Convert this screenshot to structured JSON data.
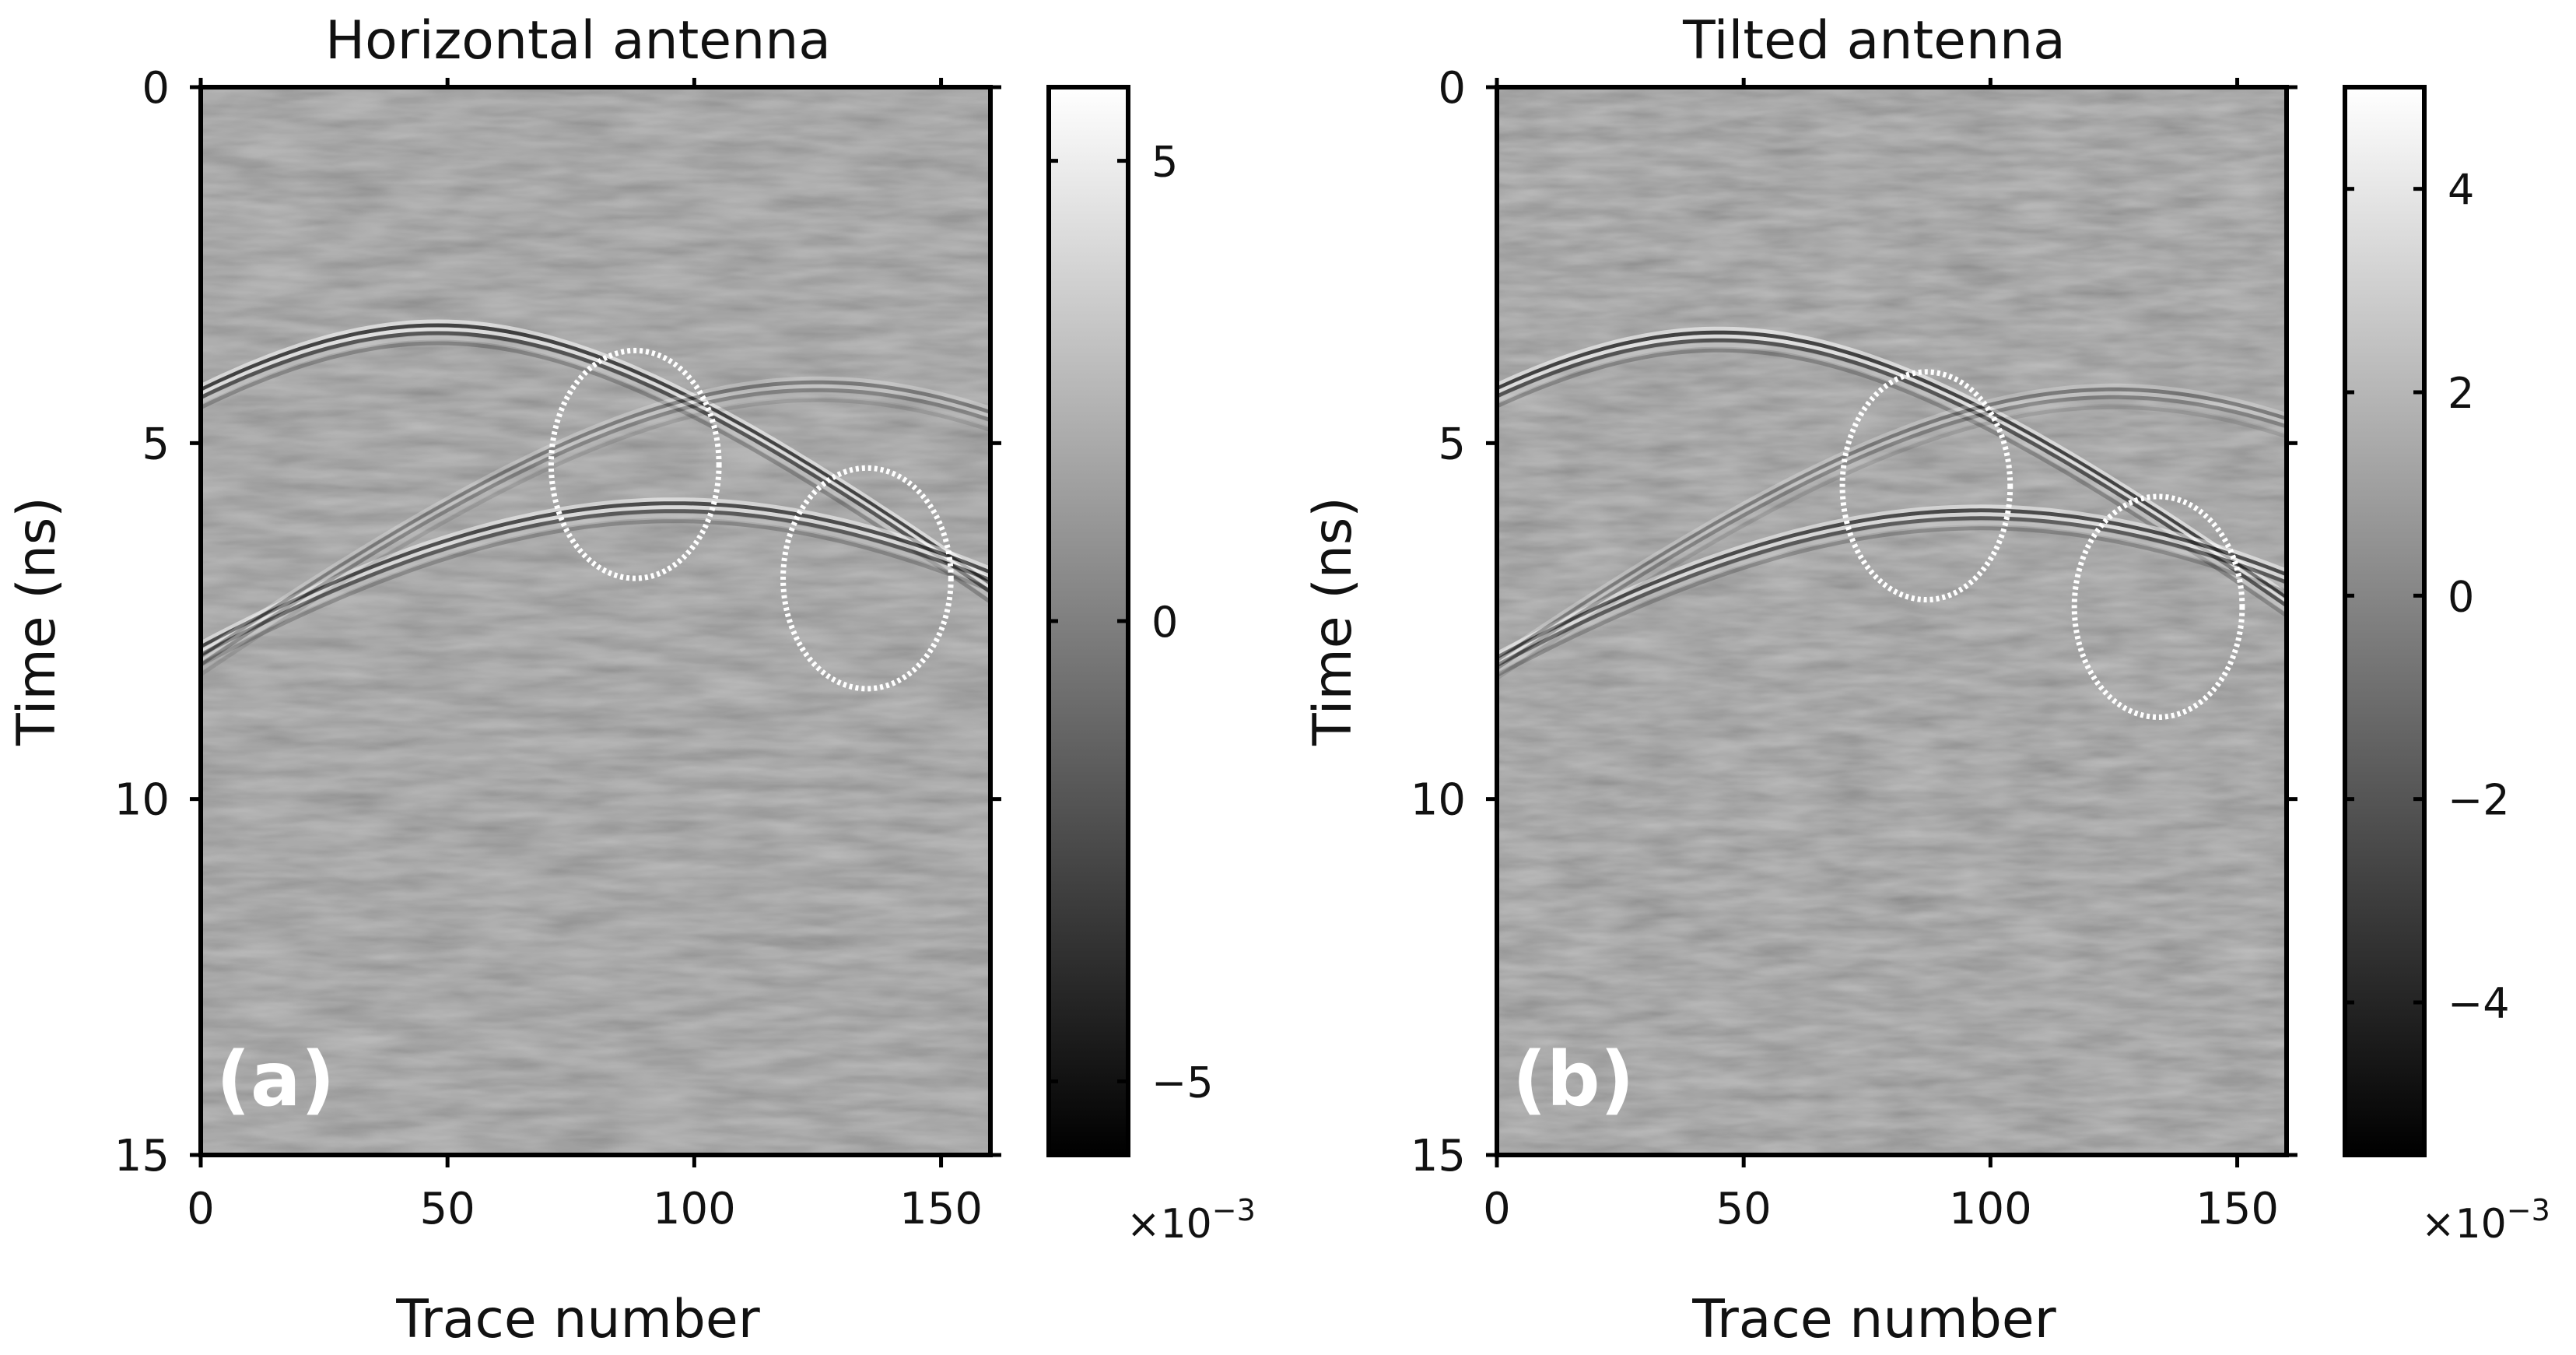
{
  "figure": {
    "panel_titles": [
      "Horizontal antenna",
      "Tilted antenna"
    ],
    "panel_letters": [
      "(a)",
      "(b)"
    ]
  },
  "chart_data": [
    {
      "type": "heatmap",
      "title": "Horizontal antenna",
      "panel_label": "(a)",
      "xlabel": "Trace number",
      "ylabel": "Time (ns)",
      "xlim": [
        0,
        160
      ],
      "ylim": [
        15,
        0
      ],
      "xticks": [
        0,
        50,
        100,
        150
      ],
      "yticks": [
        0,
        5,
        10,
        15
      ],
      "colorbar": {
        "cmap": "gray",
        "limits": [
          -5.8,
          5.8
        ],
        "ticks": [
          -5,
          0,
          5
        ],
        "tick_labels": [
          "−5",
          "0",
          "5"
        ],
        "multiplier_base": "×10",
        "multiplier_exp": "−3"
      },
      "hyperbolas": [
        {
          "apex_trace": 48,
          "apex_time_ns": 3.4,
          "strength": 1.0
        },
        {
          "apex_trace": 96,
          "apex_time_ns": 5.9,
          "strength": 0.9
        },
        {
          "apex_trace": 125,
          "apex_time_ns": 4.2,
          "strength": 0.45
        }
      ],
      "annotations": [
        {
          "shape": "ellipse",
          "center_trace": 88,
          "center_time_ns": 5.3,
          "half_width_traces": 17,
          "half_height_ns": 1.6
        },
        {
          "shape": "ellipse",
          "center_trace": 135,
          "center_time_ns": 6.9,
          "half_width_traces": 17,
          "half_height_ns": 1.55
        }
      ]
    },
    {
      "type": "heatmap",
      "title": "Tilted antenna",
      "panel_label": "(b)",
      "xlabel": "Trace number",
      "ylabel": "Time (ns)",
      "xlim": [
        0,
        160
      ],
      "ylim": [
        15,
        0
      ],
      "xticks": [
        0,
        50,
        100,
        150
      ],
      "yticks": [
        0,
        5,
        10,
        15
      ],
      "colorbar": {
        "cmap": "gray",
        "limits": [
          -5.5,
          5.0
        ],
        "ticks": [
          -4,
          -2,
          0,
          2,
          4
        ],
        "tick_labels": [
          "−4",
          "−2",
          "0",
          "2",
          "4"
        ],
        "multiplier_base": "×10",
        "multiplier_exp": "−3"
      },
      "hyperbolas": [
        {
          "apex_trace": 45,
          "apex_time_ns": 3.5,
          "strength": 1.0
        },
        {
          "apex_trace": 98,
          "apex_time_ns": 6.0,
          "strength": 0.9
        },
        {
          "apex_trace": 125,
          "apex_time_ns": 4.3,
          "strength": 0.45
        }
      ],
      "annotations": [
        {
          "shape": "ellipse",
          "center_trace": 87,
          "center_time_ns": 5.6,
          "half_width_traces": 17,
          "half_height_ns": 1.6
        },
        {
          "shape": "ellipse",
          "center_trace": 134,
          "center_time_ns": 7.3,
          "half_width_traces": 17,
          "half_height_ns": 1.55
        }
      ]
    }
  ]
}
